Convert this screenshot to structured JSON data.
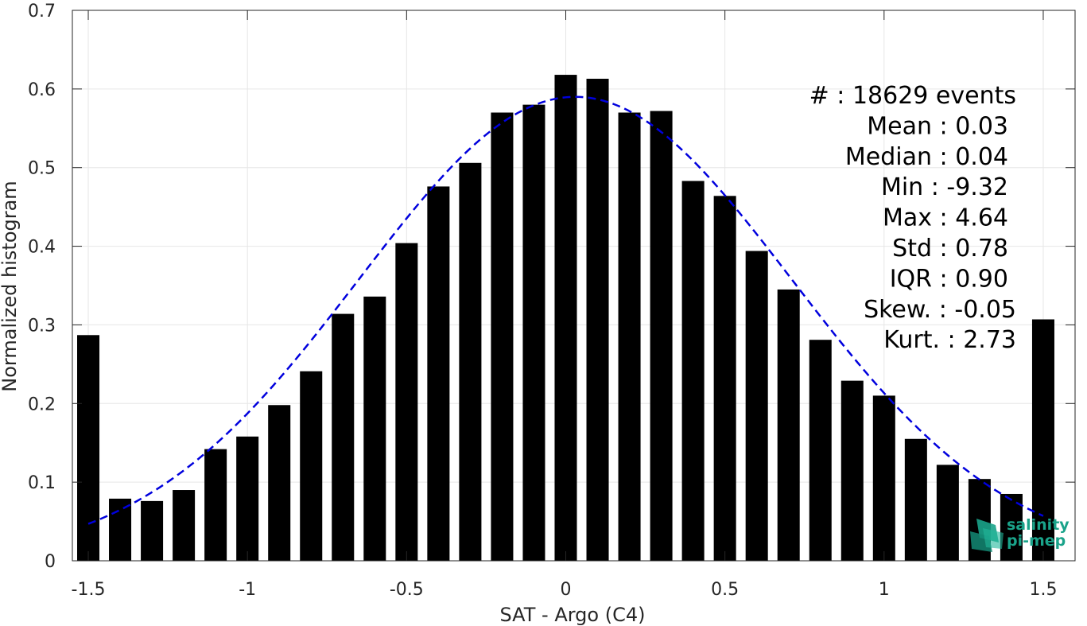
{
  "chart_data": {
    "type": "bar",
    "xlabel": "SAT - Argo (C4)",
    "ylabel": "Normalized histogram",
    "xlim": [
      -1.55,
      1.6
    ],
    "ylim": [
      0,
      0.7
    ],
    "grid": true,
    "x_ticks": [
      -1.5,
      -1,
      -0.5,
      0,
      0.5,
      1,
      1.5
    ],
    "x_tick_labels": [
      "-1.5",
      "-1",
      "-0.5",
      "0",
      "0.5",
      "1",
      "1.5"
    ],
    "y_ticks": [
      0,
      0.1,
      0.2,
      0.3,
      0.4,
      0.5,
      0.6,
      0.7
    ],
    "y_tick_labels": [
      "0",
      "0.1",
      "0.2",
      "0.3",
      "0.4",
      "0.5",
      "0.6",
      "0.7"
    ],
    "bar_width": 0.07,
    "bar_color": "#000000",
    "x": [
      -1.5,
      -1.4,
      -1.3,
      -1.2,
      -1.1,
      -1.0,
      -0.9,
      -0.8,
      -0.7,
      -0.6,
      -0.5,
      -0.4,
      -0.3,
      -0.2,
      -0.1,
      0.0,
      0.1,
      0.2,
      0.3,
      0.4,
      0.5,
      0.6,
      0.7,
      0.8,
      0.9,
      1.0,
      1.1,
      1.2,
      1.3,
      1.4,
      1.5
    ],
    "values": [
      0.287,
      0.079,
      0.076,
      0.09,
      0.142,
      0.158,
      0.198,
      0.241,
      0.314,
      0.336,
      0.404,
      0.476,
      0.506,
      0.57,
      0.58,
      0.618,
      0.613,
      0.57,
      0.572,
      0.483,
      0.464,
      0.394,
      0.345,
      0.281,
      0.229,
      0.21,
      0.155,
      0.122,
      0.104,
      0.085,
      0.307
    ],
    "fit_curve": {
      "style": "dashed",
      "color": "#0000dd",
      "x_range": [
        -1.5,
        1.5
      ],
      "mean": 0.03,
      "std": 0.68,
      "peak": 0.59
    },
    "stats_lines": [
      "#  : 18629 events",
      "Mean : 0.03",
      "Median : 0.04",
      "Min : -9.32",
      "Max : 4.64",
      "Std : 0.78",
      "IQR : 0.90",
      "Skew. : -0.05",
      "Kurt. : 2.73"
    ]
  },
  "logo": {
    "line1": "salinity",
    "line2": "pi-mep",
    "color": "#1aa38a"
  }
}
